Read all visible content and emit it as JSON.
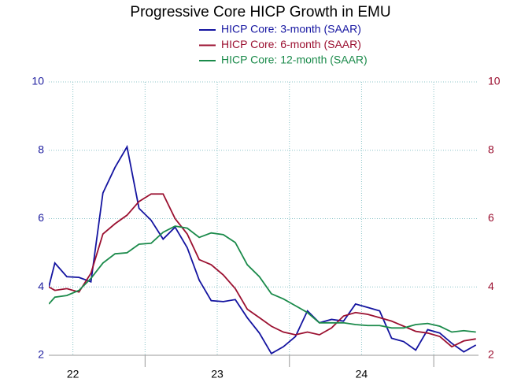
{
  "chart_data": {
    "type": "line",
    "title": "Progressive Core HICP Growth in EMU",
    "x": [
      22.333,
      22.375,
      22.458,
      22.542,
      22.625,
      22.708,
      22.792,
      22.875,
      22.958,
      23.042,
      23.125,
      23.208,
      23.292,
      23.375,
      23.458,
      23.542,
      23.625,
      23.708,
      23.792,
      23.875,
      23.958,
      24.042,
      24.125,
      24.208,
      24.292,
      24.375,
      24.458,
      24.542,
      24.625,
      24.708,
      24.792,
      24.875,
      24.958,
      25.042,
      25.125,
      25.208,
      25.292
    ],
    "series": [
      {
        "name": "HICP Core: 3-month (SAAR)",
        "color": "#1414a0",
        "values": [
          4.0,
          4.7,
          4.3,
          4.28,
          4.15,
          6.75,
          7.5,
          8.1,
          6.3,
          5.95,
          5.4,
          5.75,
          5.15,
          4.2,
          3.6,
          3.57,
          3.63,
          3.1,
          2.65,
          2.05,
          2.25,
          2.55,
          3.3,
          2.95,
          3.05,
          3.0,
          3.5,
          3.4,
          3.3,
          2.5,
          2.4,
          2.15,
          2.75,
          2.65,
          2.35,
          2.1,
          2.3
        ]
      },
      {
        "name": "HICP Core: 6-month (SAAR)",
        "color": "#9b1030",
        "values": [
          4.0,
          3.9,
          3.95,
          3.85,
          4.4,
          5.55,
          5.85,
          6.1,
          6.5,
          6.72,
          6.72,
          6.0,
          5.55,
          4.8,
          4.65,
          4.35,
          3.95,
          3.35,
          3.1,
          2.85,
          2.68,
          2.6,
          2.68,
          2.6,
          2.8,
          3.15,
          3.25,
          3.2,
          3.1,
          3.0,
          2.85,
          2.7,
          2.65,
          2.55,
          2.25,
          2.42,
          2.48
        ]
      },
      {
        "name": "HICP Core: 12-month (SAAR)",
        "color": "#1a8a4a",
        "values": [
          3.5,
          3.7,
          3.75,
          3.9,
          4.25,
          4.7,
          4.97,
          5.0,
          5.25,
          5.28,
          5.6,
          5.78,
          5.72,
          5.45,
          5.58,
          5.53,
          5.3,
          4.65,
          4.3,
          3.8,
          3.65,
          3.45,
          3.25,
          2.95,
          2.95,
          2.95,
          2.9,
          2.87,
          2.87,
          2.8,
          2.8,
          2.9,
          2.93,
          2.85,
          2.68,
          2.72,
          2.68
        ]
      }
    ],
    "xlim": [
      22.333,
      25.31
    ],
    "xticks": [
      {
        "value": 22.5,
        "label": "22"
      },
      {
        "value": 23.5,
        "label": "23"
      },
      {
        "value": 24.5,
        "label": "24"
      }
    ],
    "ylim": [
      2,
      10
    ],
    "yticks": [
      2,
      4,
      6,
      8,
      10
    ],
    "y2lim": [
      2,
      10
    ],
    "y2ticks": [
      2,
      4,
      6,
      8,
      10
    ],
    "grid": true
  }
}
